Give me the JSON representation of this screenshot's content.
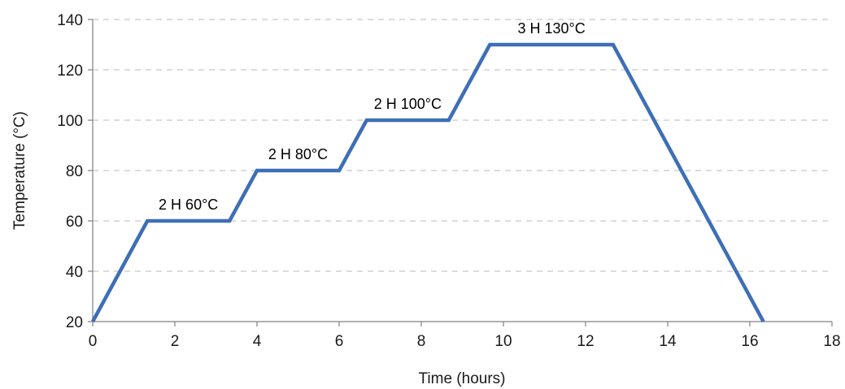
{
  "chart_data": {
    "type": "line",
    "xlabel": "Time (hours)",
    "ylabel": "Temperature (°C)",
    "xlim": [
      0,
      18
    ],
    "ylim": [
      20,
      140
    ],
    "xticks": [
      0,
      2,
      4,
      6,
      8,
      10,
      12,
      14,
      16,
      18
    ],
    "yticks": [
      20,
      40,
      60,
      80,
      100,
      120,
      140
    ],
    "grid": "horizontal dashed",
    "series": [
      {
        "color": "#3d6fb6",
        "x": [
          0,
          1.33,
          3.33,
          4,
          6,
          6.67,
          8.67,
          9.67,
          12.67,
          16.33
        ],
        "y": [
          20,
          60,
          60,
          80,
          80,
          100,
          100,
          130,
          130,
          20
        ]
      }
    ],
    "annotations": [
      {
        "text": "2 H 60°C",
        "x": 2.33,
        "y": 60
      },
      {
        "text": "2 H 80°C",
        "x": 5.0,
        "y": 80
      },
      {
        "text": "2 H 100°C",
        "x": 7.67,
        "y": 100
      },
      {
        "text": "3 H 130°C",
        "x": 11.17,
        "y": 130
      }
    ]
  }
}
